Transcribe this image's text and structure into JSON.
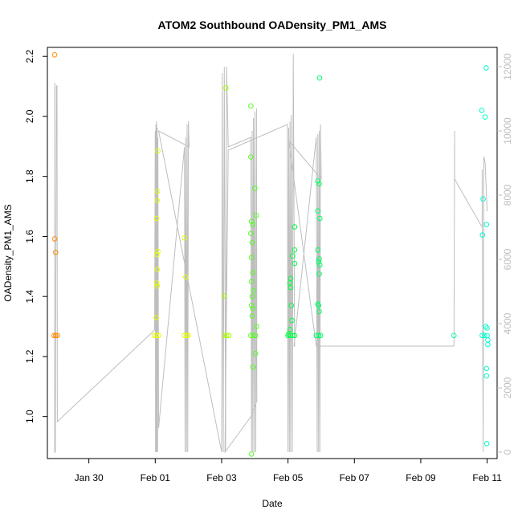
{
  "chart_data": {
    "type": "scatter",
    "title": "ATOM2 Southbound OADensity_PM1_AMS",
    "xlabel": "Date",
    "ylabel": "OADensity_PM1_AMS",
    "x_tick_labels": [
      {
        "day": 30.0,
        "label": "Jan 30"
      },
      {
        "day": 32.0,
        "label": "Feb 01"
      },
      {
        "day": 34.0,
        "label": "Feb 03"
      },
      {
        "day": 36.0,
        "label": "Feb 05"
      },
      {
        "day": 38.0,
        "label": "Feb 07"
      },
      {
        "day": 40.0,
        "label": "Feb 09"
      },
      {
        "day": 42.0,
        "label": "Feb 11"
      }
    ],
    "xlim": [
      28.75,
      42.3
    ],
    "ylim": [
      0.86,
      2.23
    ],
    "y_ticks": [
      1.0,
      1.2,
      1.4,
      1.6,
      1.8,
      2.0,
      2.2
    ],
    "y2lim": [
      -200,
      12600
    ],
    "y2_ticks": [
      0,
      2000,
      4000,
      6000,
      8000,
      10000,
      12000
    ],
    "colors": {
      "orange": "#FF8C00",
      "yellow": "#E6FF00",
      "yellow_green": "#A8FF00",
      "green": "#55FF22",
      "bright_green": "#00FF44",
      "spring": "#00FF66",
      "teal": "#00FFAA",
      "aqua": "#00FFCC",
      "line": "#BEBEBE",
      "right_axis": "#BEBEBE"
    },
    "points": [
      {
        "x": 28.97,
        "y": 2.205,
        "color": "orange"
      },
      {
        "x": 28.97,
        "y": 1.592,
        "color": "orange"
      },
      {
        "x": 29.0,
        "y": 1.547,
        "color": "orange"
      },
      {
        "x": 28.95,
        "y": 1.27,
        "color": "orange"
      },
      {
        "x": 29.0,
        "y": 1.27,
        "color": "orange"
      },
      {
        "x": 29.05,
        "y": 1.27,
        "color": "orange"
      },
      {
        "x": 32.08,
        "y": 1.885,
        "color": "yellow"
      },
      {
        "x": 32.07,
        "y": 1.75,
        "color": "yellow"
      },
      {
        "x": 32.06,
        "y": 1.72,
        "color": "yellow"
      },
      {
        "x": 32.04,
        "y": 1.66,
        "color": "yellow"
      },
      {
        "x": 32.08,
        "y": 1.55,
        "color": "yellow"
      },
      {
        "x": 32.05,
        "y": 1.54,
        "color": "yellow"
      },
      {
        "x": 32.06,
        "y": 1.49,
        "color": "yellow"
      },
      {
        "x": 32.04,
        "y": 1.445,
        "color": "yellow"
      },
      {
        "x": 32.06,
        "y": 1.435,
        "color": "yellow"
      },
      {
        "x": 32.03,
        "y": 1.33,
        "color": "yellow"
      },
      {
        "x": 31.97,
        "y": 1.27,
        "color": "yellow"
      },
      {
        "x": 32.03,
        "y": 1.27,
        "color": "yellow"
      },
      {
        "x": 32.1,
        "y": 1.27,
        "color": "yellow"
      },
      {
        "x": 32.88,
        "y": 1.595,
        "color": "yellow"
      },
      {
        "x": 32.92,
        "y": 1.465,
        "color": "yellow"
      },
      {
        "x": 32.88,
        "y": 1.27,
        "color": "yellow"
      },
      {
        "x": 32.95,
        "y": 1.27,
        "color": "yellow"
      },
      {
        "x": 33.0,
        "y": 1.27,
        "color": "yellow"
      },
      {
        "x": 34.13,
        "y": 2.095,
        "color": "yellow_green"
      },
      {
        "x": 34.08,
        "y": 1.402,
        "color": "yellow_green"
      },
      {
        "x": 34.08,
        "y": 1.27,
        "color": "yellow_green"
      },
      {
        "x": 34.15,
        "y": 1.27,
        "color": "yellow_green"
      },
      {
        "x": 34.22,
        "y": 1.27,
        "color": "yellow_green"
      },
      {
        "x": 34.88,
        "y": 2.035,
        "color": "green"
      },
      {
        "x": 34.88,
        "y": 1.865,
        "color": "green"
      },
      {
        "x": 35.0,
        "y": 1.76,
        "color": "green"
      },
      {
        "x": 35.04,
        "y": 1.67,
        "color": "green"
      },
      {
        "x": 34.9,
        "y": 1.65,
        "color": "green"
      },
      {
        "x": 34.94,
        "y": 1.64,
        "color": "green"
      },
      {
        "x": 34.88,
        "y": 1.61,
        "color": "green"
      },
      {
        "x": 34.92,
        "y": 1.58,
        "color": "green"
      },
      {
        "x": 34.9,
        "y": 1.53,
        "color": "green"
      },
      {
        "x": 34.94,
        "y": 1.48,
        "color": "green"
      },
      {
        "x": 34.9,
        "y": 1.45,
        "color": "green"
      },
      {
        "x": 34.96,
        "y": 1.42,
        "color": "green"
      },
      {
        "x": 34.92,
        "y": 1.4,
        "color": "green"
      },
      {
        "x": 34.9,
        "y": 1.37,
        "color": "green"
      },
      {
        "x": 34.94,
        "y": 1.36,
        "color": "green"
      },
      {
        "x": 34.92,
        "y": 1.335,
        "color": "green"
      },
      {
        "x": 35.05,
        "y": 1.3,
        "color": "green"
      },
      {
        "x": 35.02,
        "y": 1.21,
        "color": "green"
      },
      {
        "x": 34.94,
        "y": 1.165,
        "color": "green"
      },
      {
        "x": 34.9,
        "y": 0.875,
        "color": "green"
      },
      {
        "x": 34.88,
        "y": 1.27,
        "color": "green"
      },
      {
        "x": 34.95,
        "y": 1.27,
        "color": "green"
      },
      {
        "x": 35.02,
        "y": 1.27,
        "color": "green"
      },
      {
        "x": 36.2,
        "y": 1.632,
        "color": "bright_green"
      },
      {
        "x": 36.2,
        "y": 1.555,
        "color": "bright_green"
      },
      {
        "x": 36.14,
        "y": 1.535,
        "color": "bright_green"
      },
      {
        "x": 36.2,
        "y": 1.51,
        "color": "bright_green"
      },
      {
        "x": 36.08,
        "y": 1.46,
        "color": "bright_green"
      },
      {
        "x": 36.06,
        "y": 1.445,
        "color": "bright_green"
      },
      {
        "x": 36.08,
        "y": 1.43,
        "color": "bright_green"
      },
      {
        "x": 36.1,
        "y": 1.37,
        "color": "bright_green"
      },
      {
        "x": 36.12,
        "y": 1.32,
        "color": "bright_green"
      },
      {
        "x": 36.06,
        "y": 1.29,
        "color": "bright_green"
      },
      {
        "x": 36.0,
        "y": 1.27,
        "color": "bright_green"
      },
      {
        "x": 36.07,
        "y": 1.27,
        "color": "bright_green"
      },
      {
        "x": 36.14,
        "y": 1.27,
        "color": "bright_green"
      },
      {
        "x": 36.2,
        "y": 1.27,
        "color": "bright_green"
      },
      {
        "x": 36.02,
        "y": 1.275,
        "color": "bright_green"
      },
      {
        "x": 36.95,
        "y": 2.128,
        "color": "spring"
      },
      {
        "x": 36.9,
        "y": 1.785,
        "color": "spring"
      },
      {
        "x": 36.94,
        "y": 1.775,
        "color": "spring"
      },
      {
        "x": 36.9,
        "y": 1.685,
        "color": "spring"
      },
      {
        "x": 36.96,
        "y": 1.66,
        "color": "spring"
      },
      {
        "x": 36.9,
        "y": 1.555,
        "color": "spring"
      },
      {
        "x": 36.94,
        "y": 1.525,
        "color": "spring"
      },
      {
        "x": 36.92,
        "y": 1.515,
        "color": "spring"
      },
      {
        "x": 36.96,
        "y": 1.505,
        "color": "spring"
      },
      {
        "x": 36.94,
        "y": 1.475,
        "color": "spring"
      },
      {
        "x": 36.9,
        "y": 1.375,
        "color": "spring"
      },
      {
        "x": 36.92,
        "y": 1.37,
        "color": "spring"
      },
      {
        "x": 36.94,
        "y": 1.35,
        "color": "spring"
      },
      {
        "x": 36.85,
        "y": 1.27,
        "color": "spring"
      },
      {
        "x": 36.92,
        "y": 1.27,
        "color": "spring"
      },
      {
        "x": 36.98,
        "y": 1.27,
        "color": "spring"
      },
      {
        "x": 41.0,
        "y": 1.27,
        "color": "teal"
      },
      {
        "x": 41.97,
        "y": 2.162,
        "color": "aqua"
      },
      {
        "x": 41.84,
        "y": 2.02,
        "color": "aqua"
      },
      {
        "x": 41.94,
        "y": 1.998,
        "color": "aqua"
      },
      {
        "x": 41.88,
        "y": 1.725,
        "color": "aqua"
      },
      {
        "x": 41.98,
        "y": 1.64,
        "color": "aqua"
      },
      {
        "x": 41.86,
        "y": 1.605,
        "color": "aqua"
      },
      {
        "x": 41.96,
        "y": 1.3,
        "color": "aqua"
      },
      {
        "x": 42.0,
        "y": 1.295,
        "color": "aqua"
      },
      {
        "x": 42.02,
        "y": 1.255,
        "color": "aqua"
      },
      {
        "x": 42.02,
        "y": 1.24,
        "color": "aqua"
      },
      {
        "x": 41.98,
        "y": 1.16,
        "color": "aqua"
      },
      {
        "x": 41.98,
        "y": 1.135,
        "color": "aqua"
      },
      {
        "x": 41.99,
        "y": 0.91,
        "color": "aqua"
      },
      {
        "x": 41.85,
        "y": 1.27,
        "color": "aqua"
      },
      {
        "x": 41.92,
        "y": 1.27,
        "color": "aqua"
      },
      {
        "x": 42.0,
        "y": 1.27,
        "color": "aqua"
      }
    ],
    "secondary_line": [
      [
        28.97,
        11500
      ],
      [
        28.97,
        0
      ],
      [
        28.99,
        0
      ],
      [
        29.02,
        11400
      ],
      [
        29.04,
        11400
      ],
      [
        29.05,
        950
      ],
      [
        31.98,
        3800
      ],
      [
        32.0,
        10000
      ],
      [
        32.01,
        0
      ],
      [
        32.02,
        10200
      ],
      [
        32.03,
        0
      ],
      [
        32.04,
        10300
      ],
      [
        32.05,
        0
      ],
      [
        32.06,
        10100
      ],
      [
        32.07,
        0
      ],
      [
        32.08,
        9800
      ],
      [
        32.1,
        750
      ],
      [
        32.88,
        9500
      ],
      [
        32.9,
        0
      ],
      [
        32.92,
        9800
      ],
      [
        32.94,
        0
      ],
      [
        32.96,
        10200
      ],
      [
        32.98,
        0
      ],
      [
        33.0,
        10300
      ],
      [
        33.02,
        9500
      ],
      [
        32.1,
        10000
      ],
      [
        34.0,
        0
      ],
      [
        34.02,
        11800
      ],
      [
        34.05,
        0
      ],
      [
        34.08,
        12000
      ],
      [
        34.12,
        0
      ],
      [
        34.15,
        12000
      ],
      [
        34.2,
        9500
      ],
      [
        34.88,
        9800
      ],
      [
        34.9,
        0
      ],
      [
        34.92,
        10000
      ],
      [
        34.94,
        0
      ],
      [
        34.96,
        10400
      ],
      [
        34.98,
        0
      ],
      [
        35.0,
        10600
      ],
      [
        35.03,
        0
      ],
      [
        35.05,
        10700
      ],
      [
        35.06,
        1600
      ],
      [
        34.88,
        1100
      ],
      [
        34.1,
        0
      ],
      [
        34.2,
        9400
      ],
      [
        35.98,
        10200
      ],
      [
        36.0,
        0
      ],
      [
        36.02,
        10100
      ],
      [
        36.04,
        0
      ],
      [
        36.06,
        10300
      ],
      [
        36.08,
        0
      ],
      [
        36.1,
        10500
      ],
      [
        36.13,
        0
      ],
      [
        36.16,
        12400
      ],
      [
        36.2,
        3300
      ],
      [
        36.18,
        3300
      ],
      [
        36.85,
        9800
      ],
      [
        36.88,
        0
      ],
      [
        36.9,
        9900
      ],
      [
        36.92,
        0
      ],
      [
        36.94,
        10000
      ],
      [
        36.96,
        0
      ],
      [
        36.98,
        10200
      ],
      [
        37.0,
        8500
      ],
      [
        36.02,
        9700
      ],
      [
        36.85,
        3300
      ],
      [
        41.0,
        3300
      ],
      [
        41.02,
        10000
      ],
      [
        41.02,
        8500
      ],
      [
        41.85,
        7000
      ],
      [
        41.85,
        8800
      ],
      [
        41.88,
        0
      ],
      [
        41.9,
        9200
      ],
      [
        41.94,
        9000
      ],
      [
        42.0,
        7500
      ]
    ]
  }
}
